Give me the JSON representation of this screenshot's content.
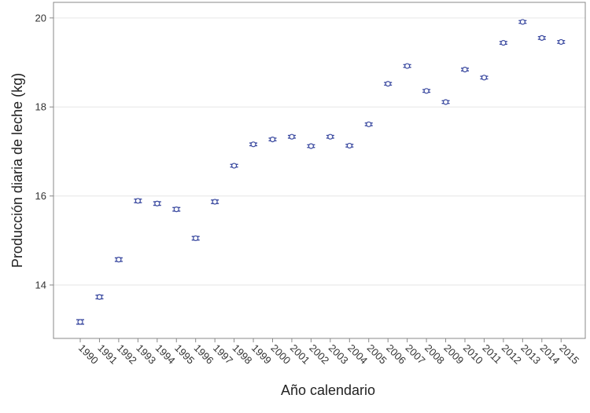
{
  "chart_data": {
    "type": "scatter",
    "title": "",
    "xlabel": "Año calendario",
    "ylabel": "Producción diaria de leche (kg)",
    "ylim": [
      12.8,
      20.35
    ],
    "yticks": [
      14,
      16,
      18,
      20
    ],
    "grid": "horizontal",
    "x": [
      "1990",
      "1991",
      "1992",
      "1993",
      "1994",
      "1995",
      "1996",
      "1997",
      "1998",
      "1999",
      "2000",
      "2001",
      "2002",
      "2003",
      "2004",
      "2005",
      "2006",
      "2007",
      "2008",
      "2009",
      "2010",
      "2011",
      "2012",
      "2013",
      "2014",
      "2015"
    ],
    "series": [
      {
        "values": [
          13.17,
          13.73,
          14.57,
          15.89,
          15.83,
          15.7,
          15.05,
          15.87,
          16.68,
          17.16,
          17.27,
          17.33,
          17.12,
          17.33,
          17.13,
          17.61,
          18.52,
          18.92,
          18.36,
          18.11,
          18.84,
          18.66,
          19.44,
          19.91,
          19.55,
          19.46
        ],
        "ci_lower": [
          13.12,
          13.69,
          14.53,
          15.85,
          15.79,
          15.66,
          15.01,
          15.83,
          16.65,
          17.13,
          17.24,
          17.3,
          17.09,
          17.3,
          17.1,
          17.58,
          18.49,
          18.89,
          18.33,
          18.08,
          18.81,
          18.63,
          19.41,
          19.88,
          19.52,
          19.43
        ],
        "ci_upper": [
          13.22,
          13.77,
          14.61,
          15.93,
          15.87,
          15.74,
          15.09,
          15.91,
          16.71,
          17.19,
          17.3,
          17.36,
          17.15,
          17.36,
          17.16,
          17.64,
          18.55,
          18.95,
          18.39,
          18.14,
          18.87,
          18.69,
          19.47,
          19.94,
          19.58,
          19.49
        ]
      }
    ],
    "colors": {
      "marker": "#3b4aa0",
      "grid": "#e6e6e6",
      "frame": "#888888"
    }
  }
}
